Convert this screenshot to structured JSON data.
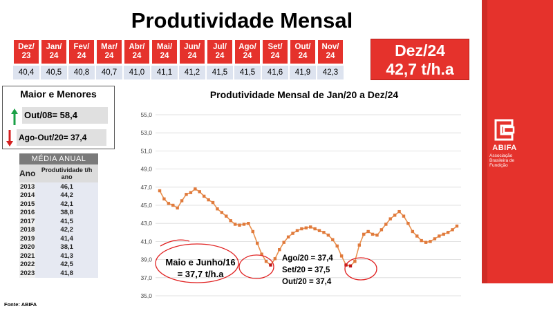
{
  "title": "Produtividade Mensal",
  "months": [
    {
      "label1": "Dez/",
      "label2": "23",
      "value": "40,4"
    },
    {
      "label1": "Jan/",
      "label2": "24",
      "value": "40,5"
    },
    {
      "label1": "Fev/",
      "label2": "24",
      "value": "40,8"
    },
    {
      "label1": "Mar/",
      "label2": "24",
      "value": "40,7"
    },
    {
      "label1": "Abr/",
      "label2": "24",
      "value": "41,0"
    },
    {
      "label1": "Mai/",
      "label2": "24",
      "value": "41,1"
    },
    {
      "label1": "Jun/",
      "label2": "24",
      "value": "41,2"
    },
    {
      "label1": "Jul/",
      "label2": "24",
      "value": "41,5"
    },
    {
      "label1": "Ago/",
      "label2": "24",
      "value": "41,5"
    },
    {
      "label1": "Set/",
      "label2": "24",
      "value": "41,6"
    },
    {
      "label1": "Out/",
      "label2": "24",
      "value": "41,9"
    },
    {
      "label1": "Nov/",
      "label2": "24",
      "value": "42,3"
    }
  ],
  "highlight": {
    "line1": "Dez/24",
    "line2": "42,7 t/h.a"
  },
  "max_min": {
    "title": "Maior e Menores",
    "max": "Out/08= 58,4",
    "min": "Ago-Out/20= 37,4"
  },
  "annual": {
    "title": "MÉDIA ANUAL",
    "col_year": "Ano",
    "col_prod": "Produtividade t/h ano",
    "rows": [
      [
        "2013",
        "46,1"
      ],
      [
        "2014",
        "44,2"
      ],
      [
        "2015",
        "42,1"
      ],
      [
        "2016",
        "38,8"
      ],
      [
        "2017",
        "41,5"
      ],
      [
        "2018",
        "42,2"
      ],
      [
        "2019",
        "41,4"
      ],
      [
        "2020",
        "38,1"
      ],
      [
        "2021",
        "41,3"
      ],
      [
        "2022",
        "42,5"
      ],
      [
        "2023",
        "41,8"
      ]
    ]
  },
  "source": "Fonte: ABIFA",
  "logo": {
    "name": "ABIFA",
    "sub": "Associação Brasileira de Fundição"
  },
  "colors": {
    "accent": "#e5322c",
    "line": "#e8914f",
    "marker": "#e07a3c",
    "circle": "#e02020"
  },
  "chart_data": {
    "type": "line",
    "title": "Produtividade Mensal de Jan/20 a Dez/24",
    "ylim": [
      35.0,
      55.0
    ],
    "yticks": [
      "35,0",
      "37,0",
      "39,0",
      "41,0",
      "43,0",
      "45,0",
      "47,0",
      "49,0",
      "51,0",
      "53,0",
      "55,0"
    ],
    "x_start": "Jan/20",
    "x_end": "Dez/24",
    "grid": true,
    "values": [
      46.6,
      45.7,
      45.2,
      45.0,
      44.7,
      45.5,
      46.2,
      46.4,
      46.8,
      46.5,
      46.0,
      45.6,
      45.3,
      44.6,
      44.2,
      43.8,
      43.3,
      42.9,
      42.8,
      42.9,
      43.0,
      42.1,
      40.8,
      39.6,
      38.8,
      38.4,
      39.1,
      40.1,
      40.9,
      41.5,
      41.9,
      42.2,
      42.4,
      42.5,
      42.6,
      42.4,
      42.2,
      42.0,
      41.7,
      41.2,
      40.5,
      39.4,
      38.4,
      38.3,
      38.8,
      40.6,
      41.8,
      42.1,
      41.8,
      41.7,
      42.3,
      42.9,
      43.5,
      43.9,
      44.3,
      43.8,
      43.0,
      42.1,
      41.6,
      41.1,
      40.9,
      41.0,
      41.3,
      41.6,
      41.8,
      42.0,
      42.3,
      42.7
    ],
    "annotations": [
      "Maio e Junho/16 = 37,7 t/h.a",
      "Ago/20 = 37,4",
      "Set/20  = 37,5",
      "Out/20  = 37,4"
    ]
  },
  "annotation_text": {
    "mj1": "Maio e Junho/16",
    "mj2": "= 37,7 t/h.a",
    "ag1": "Ago/20 = 37,4",
    "ag2": "Set/20  = 37,5",
    "ag3": "Out/20  = 37,4"
  }
}
